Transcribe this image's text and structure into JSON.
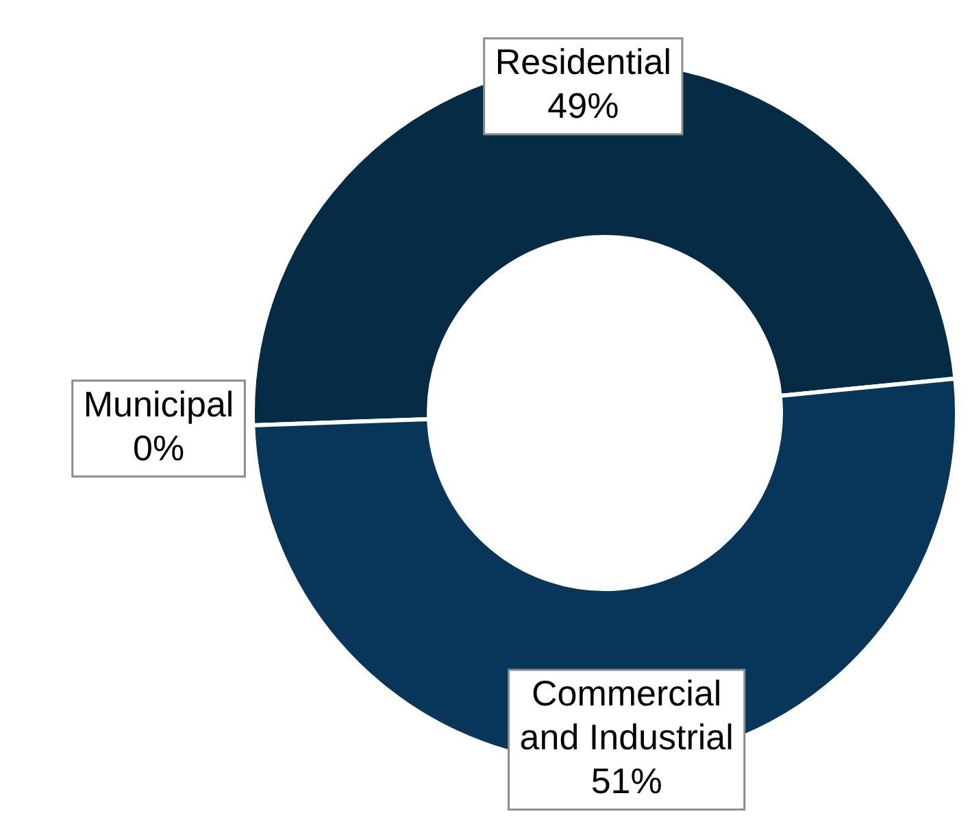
{
  "chart_data": {
    "type": "donut",
    "categories": [
      "Residential",
      "Commercial and Industrial",
      "Municipal"
    ],
    "values": [
      49,
      51,
      0
    ],
    "colors": [
      "#062b45",
      "#08365a",
      "#1c4a70"
    ],
    "value_labels": [
      "49%",
      "51%",
      "0%"
    ],
    "legend": false
  }
}
